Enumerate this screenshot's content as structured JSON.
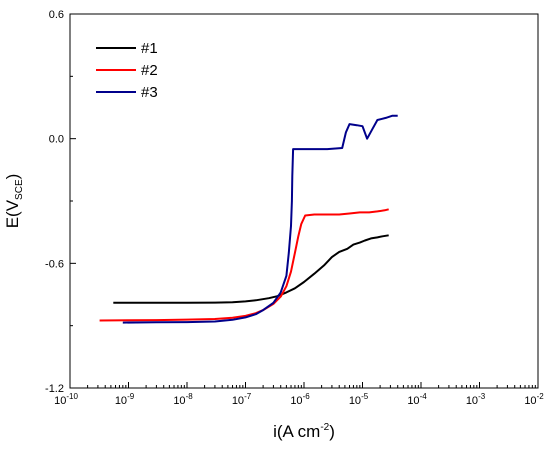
{
  "chart_data": {
    "type": "line",
    "xlabel_parts": [
      "i(A cm",
      "-2",
      ")"
    ],
    "ylabel_parts": [
      "E(V",
      "SCE",
      ")"
    ],
    "x_scale": "log",
    "xlim": [
      1e-10,
      0.01
    ],
    "ylim": [
      -1.2,
      0.6
    ],
    "x_ticks": [
      {
        "base": "10",
        "exp": "-10",
        "v": 1e-10
      },
      {
        "base": "10",
        "exp": "-9",
        "v": 1e-09
      },
      {
        "base": "10",
        "exp": "-8",
        "v": 1e-08
      },
      {
        "base": "10",
        "exp": "-7",
        "v": 1e-07
      },
      {
        "base": "10",
        "exp": "-6",
        "v": 1e-06
      },
      {
        "base": "10",
        "exp": "-5",
        "v": 1e-05
      },
      {
        "base": "10",
        "exp": "-4",
        "v": 0.0001
      },
      {
        "base": "10",
        "exp": "-3",
        "v": 0.001
      },
      {
        "base": "10",
        "exp": "-2",
        "v": 0.01
      }
    ],
    "y_ticks": [
      {
        "label": "0.6",
        "v": 0.6
      },
      {
        "label": "0.0",
        "v": 0.0
      },
      {
        "label": "-0.6",
        "v": -0.6
      },
      {
        "label": "-1.2",
        "v": -1.2
      }
    ],
    "legend_position": "top-left",
    "series": [
      {
        "name": "#1",
        "color": "#000000",
        "points": [
          [
            5.5e-10,
            -0.79
          ],
          [
            1e-09,
            -0.79
          ],
          [
            3e-09,
            -0.79
          ],
          [
            1e-08,
            -0.79
          ],
          [
            3e-08,
            -0.789
          ],
          [
            6e-08,
            -0.787
          ],
          [
            1e-07,
            -0.783
          ],
          [
            1.5e-07,
            -0.778
          ],
          [
            2.5e-07,
            -0.768
          ],
          [
            3.5e-07,
            -0.758
          ],
          [
            5e-07,
            -0.74
          ],
          [
            7e-07,
            -0.72
          ],
          [
            1e-06,
            -0.69
          ],
          [
            1.5e-06,
            -0.65
          ],
          [
            2.2e-06,
            -0.61
          ],
          [
            3e-06,
            -0.57
          ],
          [
            4e-06,
            -0.545
          ],
          [
            5.5e-06,
            -0.53
          ],
          [
            7e-06,
            -0.51
          ],
          [
            9e-06,
            -0.5
          ],
          [
            1.1e-05,
            -0.49
          ],
          [
            1.4e-05,
            -0.48
          ],
          [
            1.8e-05,
            -0.475
          ],
          [
            2.2e-05,
            -0.47
          ],
          [
            2.8e-05,
            -0.465
          ]
        ]
      },
      {
        "name": "#2",
        "color": "#ff0000",
        "points": [
          [
            3.2e-10,
            -0.875
          ],
          [
            1e-09,
            -0.874
          ],
          [
            3e-09,
            -0.873
          ],
          [
            1e-08,
            -0.871
          ],
          [
            3e-08,
            -0.868
          ],
          [
            6e-08,
            -0.862
          ],
          [
            1e-07,
            -0.853
          ],
          [
            1.5e-07,
            -0.84
          ],
          [
            2e-07,
            -0.825
          ],
          [
            3e-07,
            -0.795
          ],
          [
            4e-07,
            -0.76
          ],
          [
            5e-07,
            -0.71
          ],
          [
            6e-07,
            -0.64
          ],
          [
            7e-07,
            -0.55
          ],
          [
            8e-07,
            -0.47
          ],
          [
            9e-07,
            -0.41
          ],
          [
            1.05e-06,
            -0.37
          ],
          [
            1.5e-06,
            -0.365
          ],
          [
            2.5e-06,
            -0.365
          ],
          [
            4e-06,
            -0.365
          ],
          [
            6e-06,
            -0.36
          ],
          [
            9e-06,
            -0.355
          ],
          [
            1.3e-05,
            -0.355
          ],
          [
            1.8e-05,
            -0.35
          ],
          [
            2.4e-05,
            -0.345
          ],
          [
            2.8e-05,
            -0.34
          ]
        ]
      },
      {
        "name": "#3",
        "color": "#00008b",
        "points": [
          [
            8e-10,
            -0.885
          ],
          [
            3e-09,
            -0.884
          ],
          [
            1e-08,
            -0.883
          ],
          [
            3e-08,
            -0.88
          ],
          [
            6e-08,
            -0.872
          ],
          [
            1e-07,
            -0.86
          ],
          [
            1.5e-07,
            -0.845
          ],
          [
            2e-07,
            -0.825
          ],
          [
            3e-07,
            -0.79
          ],
          [
            4e-07,
            -0.74
          ],
          [
            5e-07,
            -0.66
          ],
          [
            5.5e-07,
            -0.55
          ],
          [
            6e-07,
            -0.42
          ],
          [
            6.2e-07,
            -0.3
          ],
          [
            6.3e-07,
            -0.18
          ],
          [
            6.5e-07,
            -0.05
          ],
          [
            7e-07,
            -0.05
          ],
          [
            1.2e-06,
            -0.05
          ],
          [
            2.5e-06,
            -0.05
          ],
          [
            4.5e-06,
            -0.045
          ],
          [
            5.2e-06,
            0.03
          ],
          [
            6e-06,
            0.07
          ],
          [
            8e-06,
            0.065
          ],
          [
            1e-05,
            0.06
          ],
          [
            1.2e-05,
            0.0
          ],
          [
            1.5e-05,
            0.05
          ],
          [
            1.8e-05,
            0.09
          ],
          [
            2.5e-05,
            0.1
          ],
          [
            3.2e-05,
            0.11
          ],
          [
            4e-05,
            0.11
          ]
        ]
      }
    ]
  }
}
